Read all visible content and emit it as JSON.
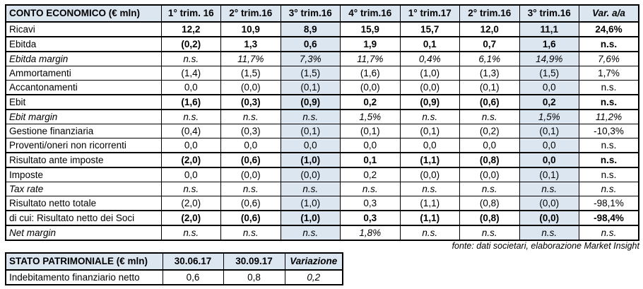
{
  "colors": {
    "accent_shade": "#dce6f1",
    "border": "#000000",
    "background": "#ffffff"
  },
  "main_table": {
    "title": "CONTO ECONOMICO (€ mln)",
    "headers": [
      "1° trim. 16",
      "2° trim.16",
      "3° trim.16",
      "4° trim.16",
      "1° trim.17",
      "2° trim.16",
      "3° trim.16",
      "Var. a/a"
    ],
    "shaded_value_columns": [
      2,
      6
    ],
    "rows": [
      {
        "label": "Ricavi",
        "style": "bold",
        "values": [
          "12,2",
          "10,9",
          "8,9",
          "15,9",
          "15,7",
          "12,0",
          "11,1",
          "24,6%"
        ]
      },
      {
        "label": "Ebitda",
        "style": "bold",
        "values": [
          "(0,2)",
          "1,3",
          "0,6",
          "1,9",
          "0,1",
          "0,7",
          "1,6",
          "n.s."
        ]
      },
      {
        "label": "Ebitda margin",
        "style": "italic",
        "values": [
          "n.s.",
          "11,7%",
          "7,3%",
          "11,7%",
          "0,4%",
          "6,1%",
          "14,9%",
          "7,6%"
        ]
      },
      {
        "label": "Ammortamenti",
        "style": "normal",
        "values": [
          "(1,4)",
          "(1,5)",
          "(1,5)",
          "(1,6)",
          "(1,0)",
          "(1,3)",
          "(1,5)",
          "1,7%"
        ]
      },
      {
        "label": "Accantonamenti",
        "style": "normal",
        "values": [
          "0,0",
          "(0,0)",
          "(0,1)",
          "(0,0)",
          "(0,0)",
          "(0,1)",
          "0,0",
          "n.s."
        ]
      },
      {
        "label": "Ebit",
        "style": "bold",
        "values": [
          "(1,6)",
          "(0,3)",
          "(0,9)",
          "0,2",
          "(0,9)",
          "(0,6)",
          "0,2",
          "n.s."
        ]
      },
      {
        "label": "Ebit margin",
        "style": "italic",
        "values": [
          "n.s.",
          "n.s.",
          "n.s.",
          "1,5%",
          "n.s.",
          "n.s.",
          "1,5%",
          "11,2%"
        ]
      },
      {
        "label": "Gestione finanziaria",
        "style": "normal",
        "values": [
          "(0,4)",
          "(0,3)",
          "(0,1)",
          "(0,1)",
          "(0,1)",
          "(0,2)",
          "(0,1)",
          "-10,3%"
        ]
      },
      {
        "label": "Proventi/oneri non ricorrenti",
        "style": "normal",
        "values": [
          "0,0",
          "0,0",
          "0,0",
          "0,0",
          "0,0",
          "0,0",
          "0,0",
          "n.s."
        ]
      },
      {
        "label": "Risultato ante imposte",
        "style": "bold",
        "values": [
          "(2,0)",
          "(0,6)",
          "(1,0)",
          "0,1",
          "(1,1)",
          "(0,8)",
          "0,0",
          "n.s."
        ]
      },
      {
        "label": "Imposte",
        "style": "normal",
        "values": [
          "0,0",
          "(0,0)",
          "(0,0)",
          "0,2",
          "(0,0)",
          "(0,0)",
          "(0,1)",
          "n.s."
        ]
      },
      {
        "label": "Tax rate",
        "style": "italic",
        "values": [
          "n.s.",
          "n.s.",
          "n.s.",
          "n.s.",
          "n.s.",
          "n.s.",
          "n.s.",
          "n.s."
        ]
      },
      {
        "label": "Risultato netto totale",
        "style": "normal",
        "values": [
          "(2,0)",
          "(0,6)",
          "(1,0)",
          "0,3",
          "(1,1)",
          "(0,8)",
          "(0,0)",
          "-98,1%"
        ]
      },
      {
        "label": "di cui: Risultato netto dei Soci",
        "style": "bold",
        "values": [
          "(2,0)",
          "(0,6)",
          "(1,0)",
          "0,3",
          "(1,1)",
          "(0,8)",
          "(0,0)",
          "-98,4%"
        ]
      },
      {
        "label": "Net margin",
        "style": "italic",
        "values": [
          "n.s.",
          "n.s.",
          "n.s.",
          "1,8%",
          "n.s.",
          "n.s.",
          "n.s.",
          "n.s."
        ]
      }
    ]
  },
  "source_note": "fonte: dati societari, elaborazione Market Insight",
  "balance_table": {
    "title": "STATO PATRIMONIALE (€ mln)",
    "headers": [
      "30.06.17",
      "30.09.17",
      "Variazione"
    ],
    "rows": [
      {
        "label": "Indebitamento finanziario netto",
        "style": "normal",
        "values": [
          "0,6",
          "0,8",
          "0,2"
        ],
        "value_styles": [
          "normal",
          "normal",
          "italic"
        ]
      }
    ]
  }
}
